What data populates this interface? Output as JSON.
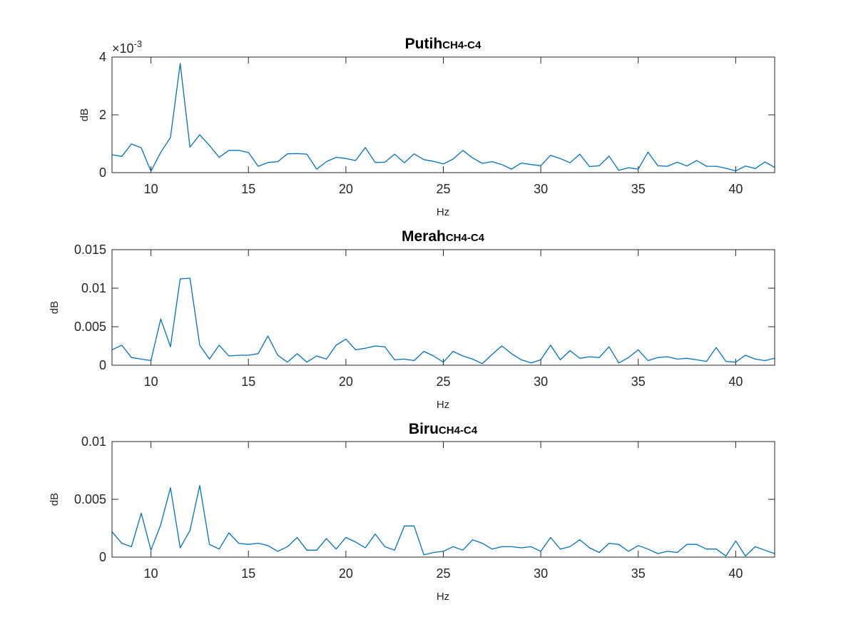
{
  "chart_data": [
    {
      "type": "line",
      "title": "Putih",
      "title_sub": "CH4-C4",
      "xlabel": "Hz",
      "ylabel": "dB",
      "xlim": [
        8,
        42
      ],
      "ylim": [
        0,
        0.004
      ],
      "x_ticks": [
        "10",
        "15",
        "20",
        "25",
        "30",
        "35",
        "40"
      ],
      "y_ticks": [
        "0",
        "2",
        "4"
      ],
      "y_exponent": "-3",
      "y_exponent_prefix": "×10",
      "color": "#0072BD",
      "series": [
        {
          "x": [
            8.0,
            8.5,
            9.0,
            9.5,
            10.0,
            10.5,
            11.0,
            11.5,
            12.0,
            12.5,
            13.0,
            13.5,
            14.0,
            14.5,
            15.0,
            15.5,
            16.0,
            16.5,
            17.0,
            17.5,
            18.0,
            18.5,
            19.0,
            19.5,
            20.0,
            20.5,
            21.0,
            21.5,
            22.0,
            22.5,
            23.0,
            23.5,
            24.0,
            24.5,
            25.0,
            25.5,
            26.0,
            26.5,
            27.0,
            27.5,
            28.0,
            28.5,
            29.0,
            29.5,
            30.0,
            30.5,
            31.0,
            31.5,
            32.0,
            32.5,
            33.0,
            33.5,
            34.0,
            34.5,
            35.0,
            35.5,
            36.0,
            36.5,
            37.0,
            37.5,
            38.0,
            38.5,
            39.0,
            39.5,
            40.0,
            40.5,
            41.0,
            41.5,
            42.0
          ],
          "values": [
            0.00062,
            0.00056,
            0.00099,
            0.00086,
            5e-05,
            0.0007,
            0.00122,
            0.00378,
            0.00088,
            0.00131,
            0.00094,
            0.00053,
            0.00077,
            0.00077,
            0.0007,
            0.00022,
            0.00035,
            0.00038,
            0.00065,
            0.00066,
            0.00064,
            0.00012,
            0.00038,
            0.00053,
            0.00049,
            0.00042,
            0.00087,
            0.00035,
            0.00036,
            0.00064,
            0.00034,
            0.00065,
            0.00045,
            0.00039,
            0.0003,
            0.00047,
            0.00077,
            0.00051,
            0.00032,
            0.00038,
            0.00028,
            0.00012,
            0.00033,
            0.00028,
            0.00024,
            0.0006,
            0.00049,
            0.00034,
            0.00064,
            0.00021,
            0.00024,
            0.00057,
            8e-05,
            0.00017,
            0.00012,
            0.00071,
            0.00024,
            0.00022,
            0.00036,
            0.00023,
            0.00042,
            0.00022,
            0.00022,
            0.00015,
            6e-05,
            0.00023,
            0.00014,
            0.00037,
            0.00018
          ]
        }
      ]
    },
    {
      "type": "line",
      "title": "Merah",
      "title_sub": "CH4-C4",
      "xlabel": "Hz",
      "ylabel": "dB",
      "xlim": [
        8,
        42
      ],
      "ylim": [
        0,
        0.015
      ],
      "x_ticks": [
        "10",
        "15",
        "20",
        "25",
        "30",
        "35",
        "40"
      ],
      "y_ticks": [
        "0",
        "0.005",
        "0.01",
        "0.015"
      ],
      "color": "#0072BD",
      "series": [
        {
          "x": [
            8.0,
            8.5,
            9.0,
            9.5,
            10.0,
            10.5,
            11.0,
            11.5,
            12.0,
            12.5,
            13.0,
            13.5,
            14.0,
            14.5,
            15.0,
            15.5,
            16.0,
            16.5,
            17.0,
            17.5,
            18.0,
            18.5,
            19.0,
            19.5,
            20.0,
            20.5,
            21.0,
            21.5,
            22.0,
            22.5,
            23.0,
            23.5,
            24.0,
            24.5,
            25.0,
            25.5,
            26.0,
            26.5,
            27.0,
            27.5,
            28.0,
            28.5,
            29.0,
            29.5,
            30.0,
            30.5,
            31.0,
            31.5,
            32.0,
            32.5,
            33.0,
            33.5,
            34.0,
            34.5,
            35.0,
            35.5,
            36.0,
            36.5,
            37.0,
            37.5,
            38.0,
            38.5,
            39.0,
            39.5,
            40.0,
            40.5,
            41.0,
            41.5,
            42.0
          ],
          "values": [
            0.002,
            0.0026,
            0.001,
            0.0008,
            0.0006,
            0.006,
            0.0024,
            0.0112,
            0.0113,
            0.0026,
            0.0008,
            0.0026,
            0.0012,
            0.0013,
            0.0013,
            0.0015,
            0.0038,
            0.0013,
            0.0004,
            0.0015,
            0.0004,
            0.0012,
            0.0008,
            0.0026,
            0.0034,
            0.002,
            0.0022,
            0.0025,
            0.0024,
            0.0007,
            0.0008,
            0.0006,
            0.0018,
            0.0012,
            0.0004,
            0.0018,
            0.0012,
            0.0008,
            0.0002,
            0.0014,
            0.0025,
            0.0015,
            0.0007,
            0.0003,
            0.0007,
            0.0026,
            0.0007,
            0.0019,
            0.0009,
            0.0011,
            0.001,
            0.0024,
            0.0003,
            0.001,
            0.002,
            0.0006,
            0.001,
            0.0011,
            0.0008,
            0.0009,
            0.0007,
            0.0005,
            0.0023,
            0.0005,
            0.0004,
            0.0013,
            0.0008,
            0.0006,
            0.0009
          ]
        }
      ]
    },
    {
      "type": "line",
      "title": "Biru",
      "title_sub": "CH4-C4",
      "xlabel": "Hz",
      "ylabel": "dB",
      "xlim": [
        8,
        42
      ],
      "ylim": [
        0,
        0.01
      ],
      "x_ticks": [
        "10",
        "15",
        "20",
        "25",
        "30",
        "35",
        "40"
      ],
      "y_ticks": [
        "0",
        "0.005",
        "0.01"
      ],
      "color": "#0072BD",
      "series": [
        {
          "x": [
            8.0,
            8.5,
            9.0,
            9.5,
            10.0,
            10.5,
            11.0,
            11.5,
            12.0,
            12.5,
            13.0,
            13.5,
            14.0,
            14.5,
            15.0,
            15.5,
            16.0,
            16.5,
            17.0,
            17.5,
            18.0,
            18.5,
            19.0,
            19.5,
            20.0,
            20.5,
            21.0,
            21.5,
            22.0,
            22.5,
            23.0,
            23.5,
            24.0,
            24.5,
            25.0,
            25.5,
            26.0,
            26.5,
            27.0,
            27.5,
            28.0,
            28.5,
            29.0,
            29.5,
            30.0,
            30.5,
            31.0,
            31.5,
            32.0,
            32.5,
            33.0,
            33.5,
            34.0,
            34.5,
            35.0,
            35.5,
            36.0,
            36.5,
            37.0,
            37.5,
            38.0,
            38.5,
            39.0,
            39.5,
            40.0,
            40.5,
            41.0,
            41.5,
            42.0
          ],
          "values": [
            0.0022,
            0.0012,
            0.0009,
            0.0038,
            0.0006,
            0.0028,
            0.006,
            0.0008,
            0.0023,
            0.0062,
            0.0011,
            0.0007,
            0.0021,
            0.0012,
            0.0011,
            0.0012,
            0.001,
            0.0005,
            0.0009,
            0.0017,
            0.0006,
            0.0006,
            0.0016,
            0.0007,
            0.0017,
            0.0013,
            0.0008,
            0.002,
            0.0009,
            0.0006,
            0.0027,
            0.0027,
            0.0002,
            0.0004,
            0.0005,
            0.0009,
            0.0006,
            0.0015,
            0.0012,
            0.0007,
            0.0009,
            0.0009,
            0.0008,
            0.0009,
            0.0005,
            0.0017,
            0.0007,
            0.0009,
            0.0015,
            0.0008,
            0.0004,
            0.0012,
            0.0011,
            0.0005,
            0.001,
            0.0007,
            0.0003,
            0.0005,
            0.0004,
            0.0011,
            0.0011,
            0.0007,
            0.0007,
            0.0001,
            0.0014,
            0.0001,
            0.0009,
            0.0006,
            0.0003
          ]
        }
      ]
    }
  ]
}
